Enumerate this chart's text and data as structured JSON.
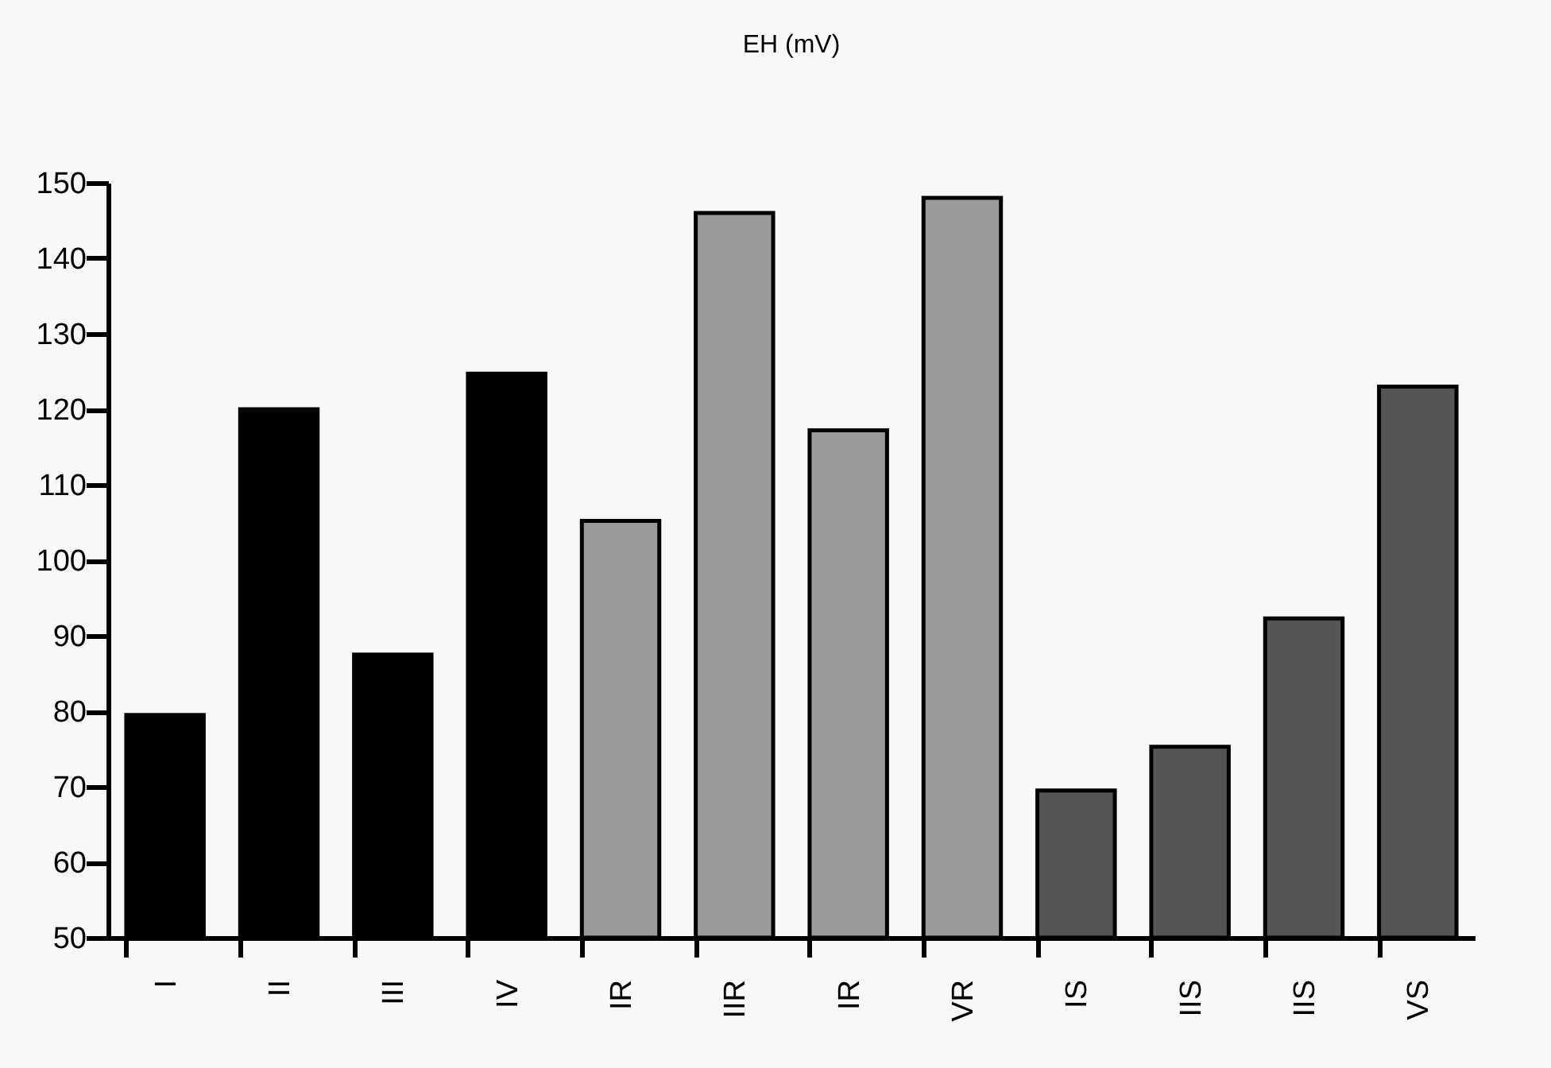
{
  "chart_data": {
    "type": "bar",
    "title": "EH (mV)",
    "categories": [
      "I",
      "II",
      "III",
      "IV",
      "IR",
      "IIR",
      "IR",
      "VR",
      "IS",
      "IIS",
      "IIS",
      "VS"
    ],
    "values": [
      79.5,
      120,
      87.5,
      124.7,
      105.2,
      146,
      117.2,
      148,
      69.5,
      75.3,
      92.3,
      123
    ],
    "colors": [
      "#000000",
      "#000000",
      "#000000",
      "#000000",
      "#9a9a9a",
      "#9a9a9a",
      "#9a9a9a",
      "#9a9a9a",
      "#555555",
      "#555555",
      "#555555",
      "#555555"
    ],
    "ylim": [
      50,
      150
    ],
    "yticks": [
      50,
      60,
      70,
      80,
      90,
      100,
      110,
      120,
      130,
      140,
      150
    ],
    "grid": false
  }
}
